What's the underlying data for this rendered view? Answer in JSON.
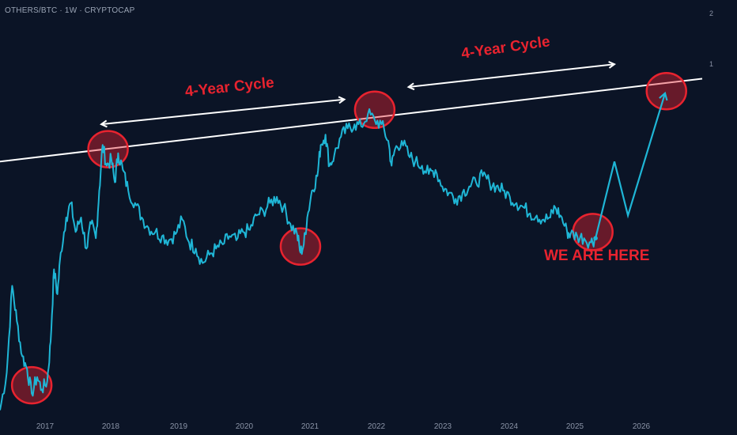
{
  "header": {
    "symbol_label": "OTHERS/BTC · 1W · CRYPTOCAP"
  },
  "colors": {
    "background": "#0b1426",
    "price_line": "#1fb6d6",
    "annotation_red": "#e8232f",
    "trendline": "#ffffff"
  },
  "annotations": {
    "cycle_label_1": "4-Year Cycle",
    "cycle_label_2": "4-Year Cycle",
    "current_label": "WE ARE HERE"
  },
  "chart_data": {
    "type": "line",
    "title": "OTHERS/BTC · 1W · CRYPTOCAP",
    "xlabel": "",
    "ylabel": "",
    "x_tick_labels": [
      "2017",
      "2018",
      "2019",
      "2020",
      "2021",
      "2022",
      "2023",
      "2024",
      "2025",
      "2026"
    ],
    "y_tick_labels": [
      "2",
      "1"
    ],
    "x_range": [
      2016.5,
      2026.9
    ],
    "y_range": [
      0.0,
      2.1
    ],
    "grid": false,
    "legend": "none",
    "series": [
      {
        "values": [
          [
            2016.5,
            0.12
          ],
          [
            2016.6,
            0.3
          ],
          [
            2016.68,
            0.72
          ],
          [
            2016.75,
            0.55
          ],
          [
            2016.83,
            0.38
          ],
          [
            2016.9,
            0.32
          ],
          [
            2016.97,
            0.2
          ],
          [
            2017.05,
            0.28
          ],
          [
            2017.12,
            0.22
          ],
          [
            2017.2,
            0.26
          ],
          [
            2017.25,
            0.45
          ],
          [
            2017.3,
            0.8
          ],
          [
            2017.35,
            0.68
          ],
          [
            2017.4,
            0.88
          ],
          [
            2017.48,
            1.05
          ],
          [
            2017.55,
            1.12
          ],
          [
            2017.62,
            0.98
          ],
          [
            2017.7,
            1.05
          ],
          [
            2017.78,
            0.9
          ],
          [
            2017.85,
            1.02
          ],
          [
            2017.92,
            0.95
          ],
          [
            2017.97,
            1.18
          ],
          [
            2018.02,
            1.4
          ],
          [
            2018.08,
            1.3
          ],
          [
            2018.15,
            1.33
          ],
          [
            2018.2,
            1.22
          ],
          [
            2018.25,
            1.36
          ],
          [
            2018.32,
            1.28
          ],
          [
            2018.4,
            1.18
          ],
          [
            2018.5,
            1.12
          ],
          [
            2018.6,
            1.05
          ],
          [
            2018.7,
            1.0
          ],
          [
            2018.8,
            0.98
          ],
          [
            2018.9,
            0.96
          ],
          [
            2019.0,
            0.94
          ],
          [
            2019.1,
            0.97
          ],
          [
            2019.2,
            1.04
          ],
          [
            2019.3,
            0.93
          ],
          [
            2019.4,
            0.9
          ],
          [
            2019.5,
            0.83
          ],
          [
            2019.6,
            0.87
          ],
          [
            2019.7,
            0.9
          ],
          [
            2019.8,
            0.92
          ],
          [
            2019.9,
            0.96
          ],
          [
            2020.0,
            0.94
          ],
          [
            2020.1,
            0.98
          ],
          [
            2020.2,
            0.99
          ],
          [
            2020.3,
            1.06
          ],
          [
            2020.4,
            1.08
          ],
          [
            2020.5,
            1.12
          ],
          [
            2020.6,
            1.15
          ],
          [
            2020.7,
            1.1
          ],
          [
            2020.8,
            1.02
          ],
          [
            2020.9,
            0.97
          ],
          [
            2020.95,
            0.88
          ],
          [
            2021.0,
            0.92
          ],
          [
            2021.05,
            1.05
          ],
          [
            2021.12,
            1.18
          ],
          [
            2021.2,
            1.25
          ],
          [
            2021.25,
            1.4
          ],
          [
            2021.32,
            1.45
          ],
          [
            2021.38,
            1.3
          ],
          [
            2021.45,
            1.35
          ],
          [
            2021.55,
            1.44
          ],
          [
            2021.65,
            1.48
          ],
          [
            2021.75,
            1.5
          ],
          [
            2021.85,
            1.49
          ],
          [
            2021.95,
            1.55
          ],
          [
            2022.05,
            1.52
          ],
          [
            2022.15,
            1.5
          ],
          [
            2022.25,
            1.42
          ],
          [
            2022.3,
            1.3
          ],
          [
            2022.35,
            1.38
          ],
          [
            2022.45,
            1.42
          ],
          [
            2022.55,
            1.35
          ],
          [
            2022.65,
            1.32
          ],
          [
            2022.75,
            1.3
          ],
          [
            2022.85,
            1.26
          ],
          [
            2022.95,
            1.28
          ],
          [
            2023.05,
            1.2
          ],
          [
            2023.15,
            1.17
          ],
          [
            2023.25,
            1.14
          ],
          [
            2023.35,
            1.17
          ],
          [
            2023.45,
            1.2
          ],
          [
            2023.55,
            1.22
          ],
          [
            2023.65,
            1.25
          ],
          [
            2023.75,
            1.22
          ],
          [
            2023.85,
            1.2
          ],
          [
            2023.95,
            1.18
          ],
          [
            2024.05,
            1.15
          ],
          [
            2024.15,
            1.12
          ],
          [
            2024.25,
            1.1
          ],
          [
            2024.35,
            1.07
          ],
          [
            2024.45,
            1.06
          ],
          [
            2024.55,
            1.04
          ],
          [
            2024.65,
            1.05
          ],
          [
            2024.72,
            1.1
          ],
          [
            2024.8,
            1.06
          ],
          [
            2024.9,
            0.98
          ],
          [
            2024.95,
            0.97
          ],
          [
            2025.05,
            0.96
          ],
          [
            2025.15,
            0.95
          ],
          [
            2025.25,
            0.93
          ],
          [
            2025.32,
            0.95
          ]
        ]
      },
      {
        "values": [
          [
            2025.32,
            0.95
          ],
          [
            2025.6,
            1.32
          ],
          [
            2025.8,
            1.06
          ],
          [
            2026.35,
            1.65
          ]
        ]
      }
    ],
    "annotations": [
      {
        "type": "trendline",
        "from": [
          2016.5,
          1.32
        ],
        "to": [
          2026.9,
          1.72
        ]
      },
      {
        "type": "circle",
        "at": [
          2016.97,
          0.24
        ]
      },
      {
        "type": "circle",
        "at": [
          2018.1,
          1.38
        ]
      },
      {
        "type": "circle",
        "at": [
          2020.95,
          0.91
        ]
      },
      {
        "type": "circle",
        "at": [
          2022.05,
          1.57
        ]
      },
      {
        "type": "circle",
        "at": [
          2025.28,
          0.98
        ]
      },
      {
        "type": "circle",
        "at": [
          2026.37,
          1.66
        ]
      },
      {
        "type": "double_arrow",
        "from": [
          2018.0,
          1.5
        ],
        "to": [
          2021.6,
          1.62
        ]
      },
      {
        "type": "double_arrow",
        "from": [
          2022.55,
          1.68
        ],
        "to": [
          2025.6,
          1.79
        ]
      }
    ]
  }
}
